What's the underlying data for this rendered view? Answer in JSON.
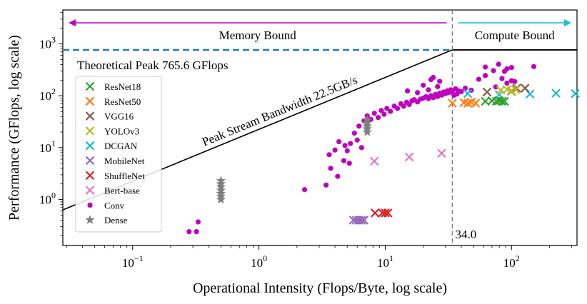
{
  "chart_data": {
    "type": "scatter",
    "subtype": "roofline",
    "xlabel": "Operational Intensity (Flops/Byte, log scale)",
    "ylabel": "Performance (GFlops, log scale)",
    "xscale": "log",
    "yscale": "log",
    "xlim": [
      0.028,
      330
    ],
    "ylim": [
      0.13,
      4500
    ],
    "x_ticks": [
      {
        "value": 0.1,
        "base": "10",
        "exp": "−1"
      },
      {
        "value": 1,
        "base": "10",
        "exp": "0"
      },
      {
        "value": 10,
        "base": "10",
        "exp": "1"
      },
      {
        "value": 100,
        "base": "10",
        "exp": "2"
      }
    ],
    "y_ticks": [
      {
        "value": 1,
        "base": "10",
        "exp": "0"
      },
      {
        "value": 10,
        "base": "10",
        "exp": "1"
      },
      {
        "value": 100,
        "base": "10",
        "exp": "2"
      },
      {
        "value": 1000,
        "base": "10",
        "exp": "3"
      }
    ],
    "roofline": {
      "peak_gflops": 765.6,
      "bandwidth_gbs": 22.5,
      "ridge_point": 34.0,
      "peak_label": "Theoretical Peak 765.6 GFlops",
      "bandwidth_label": "Peak Stream Bandwidth 22.5GB/s",
      "ridge_label": "34.0",
      "memory_bound_label": "Memory Bound",
      "compute_bound_label": "Compute Bound"
    },
    "colors": {
      "roof": "#000000",
      "peak_dashed": "#1f77b4",
      "ridge_dashed": "#7f7f7f",
      "memory_arrow": "#bf00bf",
      "compute_arrow": "#17becf"
    },
    "series": [
      {
        "name": "ResNet18",
        "marker": "x",
        "color": "#2ca02c",
        "points": [
          [
            62,
            78
          ],
          [
            70,
            80
          ],
          [
            76,
            78
          ],
          [
            80,
            80
          ],
          [
            84,
            78
          ],
          [
            88,
            78
          ]
        ]
      },
      {
        "name": "ResNet50",
        "marker": "x",
        "color": "#ff7f0e",
        "points": [
          [
            34,
            72
          ],
          [
            42,
            74
          ],
          [
            45,
            72
          ],
          [
            48,
            75
          ],
          [
            52,
            72
          ]
        ]
      },
      {
        "name": "VGG16",
        "marker": "x",
        "color": "#8c564b",
        "points": [
          [
            64,
            118
          ],
          [
            100,
            122
          ],
          [
            110,
            140
          ],
          [
            128,
            140
          ]
        ]
      },
      {
        "name": "YOLOv3",
        "marker": "x",
        "color": "#bcbd22",
        "points": [
          [
            82,
            128
          ],
          [
            92,
            132
          ],
          [
            100,
            125
          ],
          [
            108,
            130
          ]
        ]
      },
      {
        "name": "DCGAN",
        "marker": "x",
        "color": "#17becf",
        "points": [
          [
            45,
            110
          ],
          [
            80,
            105
          ],
          [
            140,
            108
          ],
          [
            225,
            112
          ],
          [
            320,
            110
          ]
        ]
      },
      {
        "name": "MobileNet",
        "marker": "x",
        "color": "#9467bd",
        "points": [
          [
            5.6,
            0.4
          ],
          [
            5.9,
            0.4
          ],
          [
            6.2,
            0.4
          ],
          [
            6.5,
            0.4
          ],
          [
            6.8,
            0.4
          ]
        ]
      },
      {
        "name": "ShuffleNet",
        "marker": "x",
        "color": "#d62728",
        "points": [
          [
            8.3,
            0.55
          ],
          [
            9.5,
            0.55
          ],
          [
            10,
            0.55
          ],
          [
            10.5,
            0.55
          ]
        ]
      },
      {
        "name": "Bert-base",
        "marker": "x",
        "color": "#e377c2",
        "points": [
          [
            8.2,
            5.5
          ],
          [
            15.5,
            6.6
          ],
          [
            28,
            7.8
          ]
        ]
      },
      {
        "name": "Conv",
        "marker": "o",
        "color": "#bf00bf",
        "points": [
          [
            0.28,
            0.24
          ],
          [
            0.32,
            0.24
          ],
          [
            0.33,
            0.37
          ],
          [
            2.3,
            1.55
          ],
          [
            3.4,
            1.9
          ],
          [
            4.2,
            2.8
          ],
          [
            3.7,
            4.0
          ],
          [
            5.2,
            5.0
          ],
          [
            3.6,
            7.3
          ],
          [
            4.7,
            5.6
          ],
          [
            4.0,
            9.0
          ],
          [
            5.0,
            8.7
          ],
          [
            4.8,
            11
          ],
          [
            4.3,
            13
          ],
          [
            5.3,
            12
          ],
          [
            6.0,
            14
          ],
          [
            6.5,
            10
          ],
          [
            5.7,
            19
          ],
          [
            6.2,
            26
          ],
          [
            6.8,
            33
          ],
          [
            7.2,
            41
          ],
          [
            7.7,
            35
          ],
          [
            8.2,
            46
          ],
          [
            8.8,
            38
          ],
          [
            9.3,
            52
          ],
          [
            9.8,
            44
          ],
          [
            10.3,
            57
          ],
          [
            11,
            50
          ],
          [
            11.8,
            63
          ],
          [
            12.5,
            57
          ],
          [
            13.3,
            70
          ],
          [
            14,
            63
          ],
          [
            14.8,
            75
          ],
          [
            15.5,
            68
          ],
          [
            16.3,
            80
          ],
          [
            17,
            84
          ],
          [
            18,
            76
          ],
          [
            19,
            86
          ],
          [
            20,
            90
          ],
          [
            21,
            96
          ],
          [
            22,
            88
          ],
          [
            23,
            100
          ],
          [
            24,
            92
          ],
          [
            25,
            106
          ],
          [
            26,
            97
          ],
          [
            27,
            112
          ],
          [
            28,
            103
          ],
          [
            29,
            118
          ],
          [
            30,
            110
          ],
          [
            31,
            124
          ],
          [
            32,
            115
          ],
          [
            33,
            130
          ],
          [
            34,
            120
          ],
          [
            35,
            102
          ],
          [
            36,
            136
          ],
          [
            37,
            108
          ],
          [
            38,
            124
          ],
          [
            40,
            120
          ],
          [
            18,
            115
          ],
          [
            22,
            130
          ],
          [
            20,
            160
          ],
          [
            15,
            124
          ],
          [
            26,
            150
          ],
          [
            23,
            205
          ],
          [
            24,
            226
          ],
          [
            27,
            190
          ],
          [
            55,
            208
          ],
          [
            75,
            148
          ],
          [
            84,
            215
          ],
          [
            92,
            175
          ],
          [
            100,
            195
          ],
          [
            106,
            188
          ],
          [
            62,
            245
          ],
          [
            88,
            295
          ],
          [
            100,
            350
          ],
          [
            92,
            330
          ],
          [
            79,
            405
          ],
          [
            72,
            305
          ],
          [
            62,
            357
          ],
          [
            150,
            365
          ],
          [
            43,
            140
          ],
          [
            48,
            128
          ]
        ]
      },
      {
        "name": "Dense",
        "marker": "*",
        "color": "#7f7f7f",
        "points": [
          [
            0.5,
            1.0
          ],
          [
            0.5,
            1.15
          ],
          [
            0.5,
            1.3
          ],
          [
            0.5,
            1.5
          ],
          [
            0.5,
            1.75
          ],
          [
            0.5,
            2.0
          ],
          [
            0.5,
            2.3
          ],
          [
            7.2,
            20
          ],
          [
            7.2,
            23
          ],
          [
            7.2,
            26
          ],
          [
            7.2,
            30
          ],
          [
            7.2,
            34
          ]
        ]
      }
    ]
  }
}
